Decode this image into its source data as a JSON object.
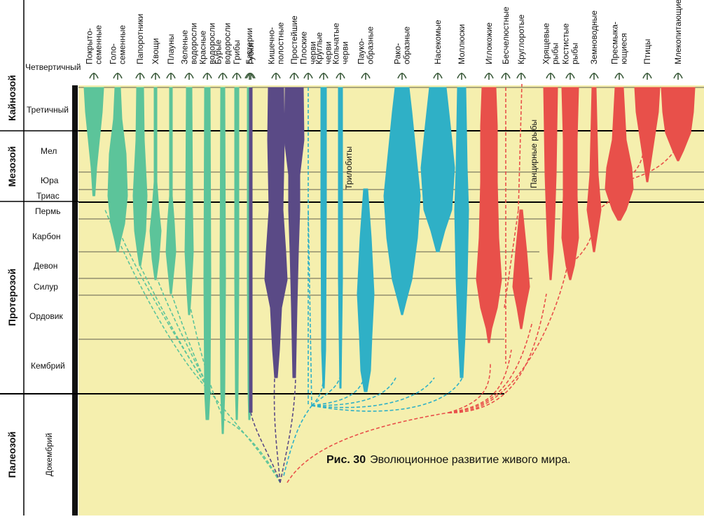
{
  "caption": {
    "number": "Рис. 30",
    "text": "Эволюционное развитие живого мира."
  },
  "eras": [
    "Кайнозой",
    "Мезозой",
    "Протерозой",
    "Палеозой"
  ],
  "periods": [
    "Четвертичный",
    "Третичный",
    "Мел",
    "Юра",
    "Триас",
    "Пермь",
    "Карбон",
    "Девон",
    "Силур",
    "Ордовик",
    "Кембрий",
    "Докембрий"
  ],
  "groups": [
    {
      "lines": [
        "Покрыто-",
        "семенные"
      ],
      "color": "#5cc49a"
    },
    {
      "lines": [
        "Голо-",
        "семенные"
      ],
      "color": "#5cc49a"
    },
    {
      "lines": [
        "Папоротники"
      ],
      "color": "#5cc49a"
    },
    {
      "lines": [
        "Хвощи"
      ],
      "color": "#5cc49a"
    },
    {
      "lines": [
        "Плауны"
      ],
      "color": "#5cc49a"
    },
    {
      "lines": [
        "Зеленые",
        "водоросли"
      ],
      "color": "#5cc49a"
    },
    {
      "lines": [
        "Красные",
        "водоросли"
      ],
      "color": "#5cc49a"
    },
    {
      "lines": [
        "Бурые",
        "водоросли"
      ],
      "color": "#5cc49a"
    },
    {
      "lines": [
        "Грибы"
      ],
      "color": "#5cc49a"
    },
    {
      "lines": [
        "Бактерии"
      ],
      "color": "#5cc49a"
    },
    {
      "lines": [
        "Губки"
      ],
      "color": "#5a4a86"
    },
    {
      "lines": [
        "Кишечно-",
        "полостные"
      ],
      "color": "#5a4a86"
    },
    {
      "lines": [
        "Простейшие"
      ],
      "color": "#5a4a86"
    },
    {
      "lines": [
        "Плоские",
        "черви"
      ],
      "color": "#2fb0c6"
    },
    {
      "lines": [
        "Круглые",
        "черви"
      ],
      "color": "#2fb0c6"
    },
    {
      "lines": [
        "Кольчатые",
        "черви"
      ],
      "color": "#2fb0c6"
    },
    {
      "lines": [
        "Пауко-",
        "образные"
      ],
      "color": "#2fb0c6"
    },
    {
      "lines": [
        "Рако-",
        "образные"
      ],
      "color": "#2fb0c6"
    },
    {
      "lines": [
        "Насекомые"
      ],
      "color": "#2fb0c6"
    },
    {
      "lines": [
        "Моллюски"
      ],
      "color": "#2fb0c6"
    },
    {
      "lines": [
        "Иглокожие"
      ],
      "color": "#e8504a"
    },
    {
      "lines": [
        "Бесчелюстные"
      ],
      "color": "#e8504a"
    },
    {
      "lines": [
        "Круглоротые"
      ],
      "color": "#e8504a"
    },
    {
      "lines": [
        "Хрящевые",
        "рыбы"
      ],
      "color": "#e8504a"
    },
    {
      "lines": [
        "Костистые",
        "рыбы"
      ],
      "color": "#e8504a"
    },
    {
      "lines": [
        "Земноводные"
      ],
      "color": "#e8504a"
    },
    {
      "lines": [
        "Пресмыка-",
        "ющиеся"
      ],
      "color": "#e8504a"
    },
    {
      "lines": [
        "Птицы"
      ],
      "color": "#e8504a"
    },
    {
      "lines": [
        "Млекопитающие"
      ],
      "color": "#e8504a"
    }
  ],
  "inner_labels": {
    "trilobites": "Трилобиты",
    "armored_fish": "Панцирные рыбы"
  },
  "colors": {
    "background": "#f5efae",
    "plants": "#5cc49a",
    "primitive": "#5a4a86",
    "invertebrates": "#2fb0c6",
    "vertebrates": "#e8504a"
  }
}
